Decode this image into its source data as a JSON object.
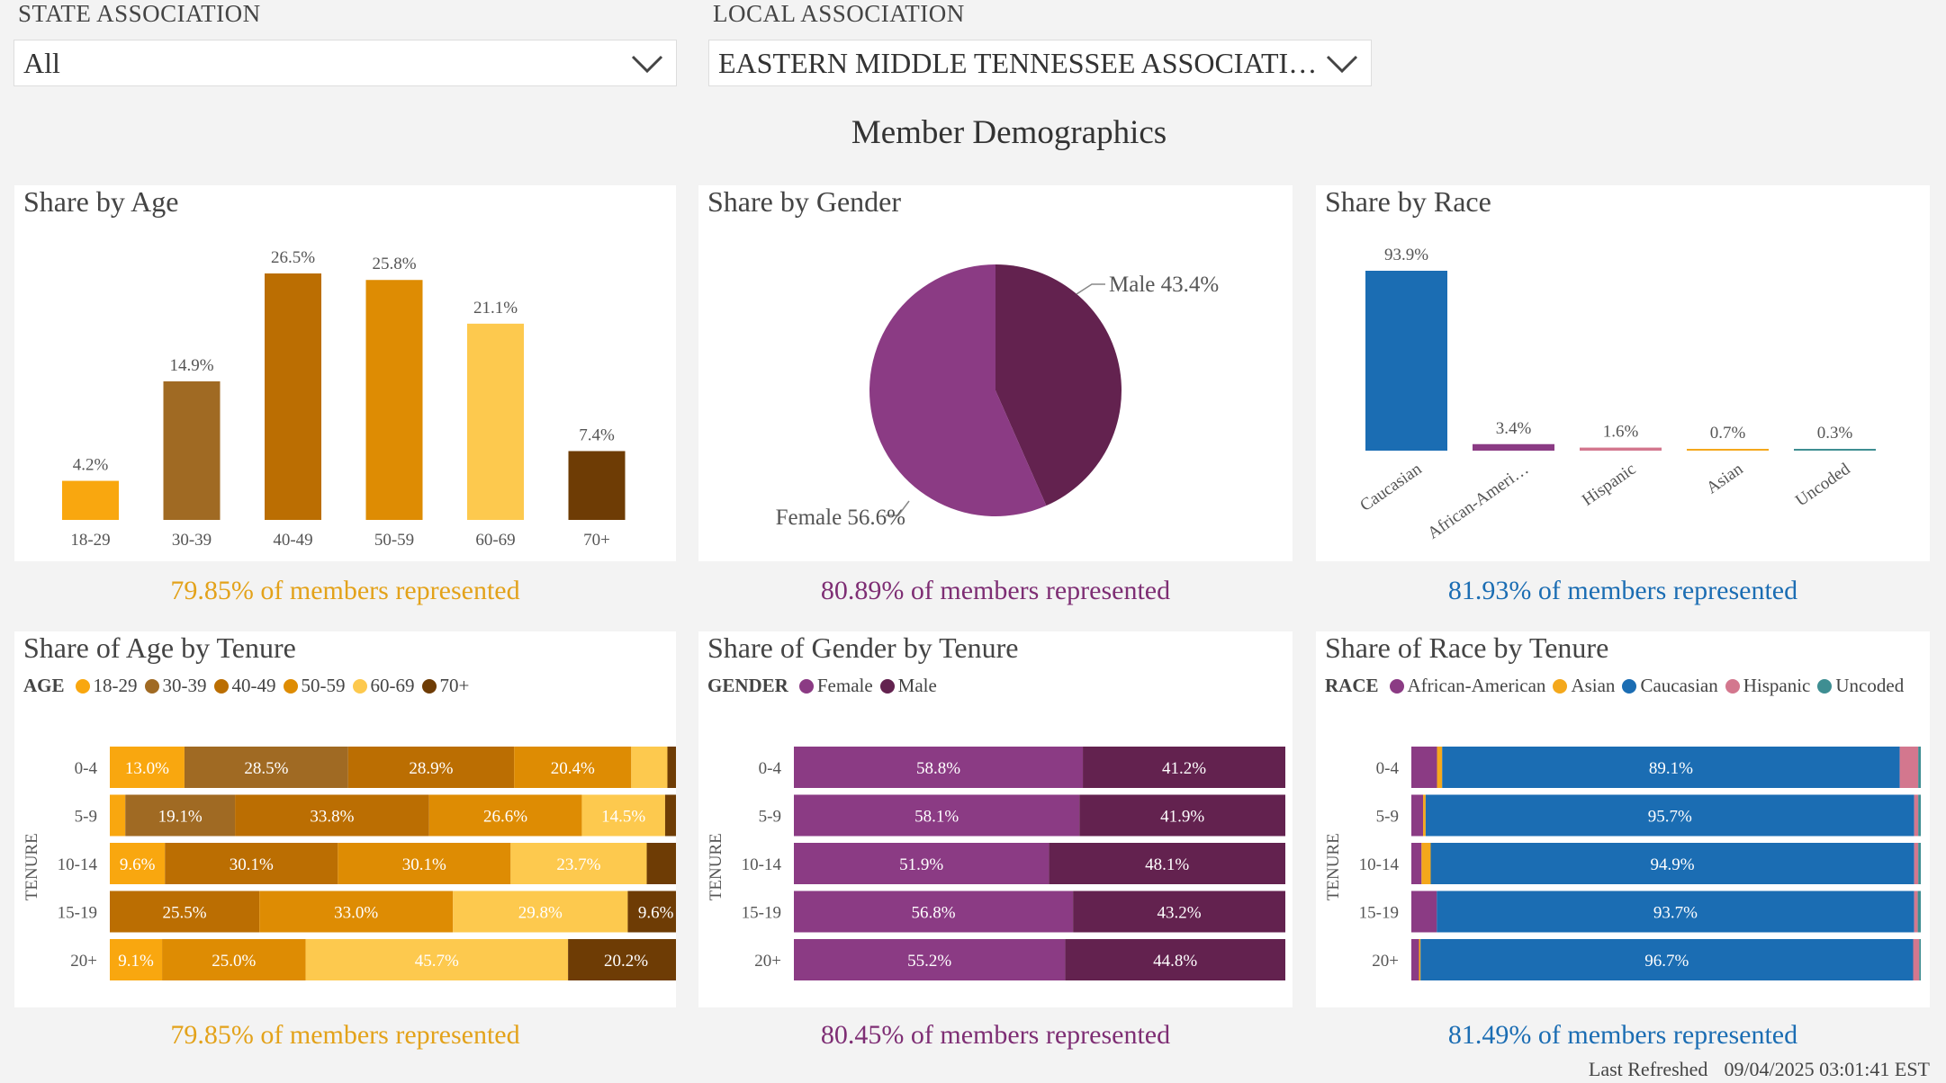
{
  "filters": {
    "state": {
      "label": "STATE ASSOCIATION",
      "value": "All"
    },
    "local": {
      "label": "LOCAL ASSOCIATION",
      "value": "EASTERN MIDDLE TENNESSEE ASSOCIATI…"
    }
  },
  "page_title": "Member Demographics",
  "colors": {
    "age": [
      "#f9a70f",
      "#a06a23",
      "#bb6e02",
      "#de8c03",
      "#fdc94e",
      "#6e3c05"
    ],
    "gender": {
      "female": "#8b3b84",
      "male": "#63224f"
    },
    "race": {
      "African-American": "#8b3b84",
      "Asian": "#f4a81c",
      "Caucasian": "#1b6db3",
      "Hispanic": "#d3778e",
      "Uncoded": "#3e8e92"
    },
    "foot_age": "#e3a21a",
    "foot_gender": "#7e2e74",
    "foot_race": "#1b6db3"
  },
  "cards": {
    "age": {
      "title": "Share by Age",
      "footnote": "79.85% of members represented"
    },
    "gender": {
      "title": "Share by Gender",
      "footnote": "80.89% of members represented"
    },
    "race": {
      "title": "Share by Race",
      "footnote": "81.93% of members represented"
    },
    "age_tenure": {
      "title": "Share of Age by Tenure",
      "footnote": "79.85% of members represented",
      "legend_title": "AGE",
      "axis_label": "TENURE"
    },
    "gender_tenure": {
      "title": "Share of Gender by Tenure",
      "footnote": "80.45% of members represented",
      "legend_title": "GENDER",
      "axis_label": "TENURE"
    },
    "race_tenure": {
      "title": "Share of Race by Tenure",
      "footnote": "81.49% of members represented",
      "legend_title": "RACE",
      "axis_label": "TENURE"
    }
  },
  "last_refreshed": {
    "label": "Last Refreshed",
    "value": "09/04/2025 03:01:41 EST"
  },
  "chart_data": [
    {
      "id": "age",
      "type": "bar",
      "title": "Share by Age",
      "categories": [
        "18-29",
        "30-39",
        "40-49",
        "50-59",
        "60-69",
        "70+"
      ],
      "values": [
        4.2,
        14.9,
        26.5,
        25.8,
        21.1,
        7.4
      ],
      "labels": [
        "4.2%",
        "14.9%",
        "26.5%",
        "25.8%",
        "21.1%",
        "7.4%"
      ],
      "ylim": [
        0,
        30
      ]
    },
    {
      "id": "gender",
      "type": "pie",
      "title": "Share by Gender",
      "categories": [
        "Male",
        "Female"
      ],
      "values": [
        43.4,
        56.6
      ],
      "labels": [
        "Male 43.4%",
        "Female 56.6%"
      ]
    },
    {
      "id": "race",
      "type": "bar",
      "title": "Share by Race",
      "categories": [
        "Caucasian",
        "African-Ameri…",
        "Hispanic",
        "Asian",
        "Uncoded"
      ],
      "values": [
        93.9,
        3.4,
        1.6,
        0.7,
        0.3
      ],
      "labels": [
        "93.9%",
        "3.4%",
        "1.6%",
        "0.7%",
        "0.3%"
      ],
      "ylim": [
        0,
        100
      ]
    },
    {
      "id": "age_tenure",
      "type": "bar",
      "orientation": "horizontal",
      "stacked": "100%",
      "title": "Share of Age by Tenure",
      "ylabel": "TENURE",
      "categories": [
        "0-4",
        "5-9",
        "10-14",
        "15-19",
        "20+"
      ],
      "series": [
        {
          "name": "18-29",
          "values": [
            13.0,
            2.7,
            9.6,
            0,
            9.1
          ],
          "labels": [
            "13.0%",
            "",
            "9.6%",
            "",
            "9.1%"
          ]
        },
        {
          "name": "30-39",
          "values": [
            28.5,
            19.1,
            0,
            0,
            0
          ],
          "labels": [
            "28.5%",
            "19.1%",
            "",
            "",
            ""
          ]
        },
        {
          "name": "40-49",
          "values": [
            28.9,
            33.8,
            30.1,
            25.5,
            0
          ],
          "labels": [
            "28.9%",
            "33.8%",
            "30.1%",
            "25.5%",
            ""
          ]
        },
        {
          "name": "50-59",
          "values": [
            20.4,
            26.6,
            30.1,
            33.0,
            25.0
          ],
          "labels": [
            "20.4%",
            "26.6%",
            "30.1%",
            "33.0%",
            "25.0%"
          ]
        },
        {
          "name": "60-69",
          "values": [
            6.3,
            14.5,
            23.7,
            29.8,
            45.7
          ],
          "labels": [
            "",
            "14.5%",
            "23.7%",
            "29.8%",
            "45.7%"
          ]
        },
        {
          "name": "70+",
          "values": [
            2.9,
            3.3,
            6.5,
            9.6,
            20.2
          ],
          "labels": [
            "",
            "",
            "",
            "9.6%",
            "20.2%"
          ]
        }
      ]
    },
    {
      "id": "gender_tenure",
      "type": "bar",
      "orientation": "horizontal",
      "stacked": "100%",
      "title": "Share of Gender by Tenure",
      "ylabel": "TENURE",
      "categories": [
        "0-4",
        "5-9",
        "10-14",
        "15-19",
        "20+"
      ],
      "series": [
        {
          "name": "Female",
          "values": [
            58.8,
            58.1,
            51.9,
            56.8,
            55.2
          ],
          "labels": [
            "58.8%",
            "58.1%",
            "51.9%",
            "56.8%",
            "55.2%"
          ]
        },
        {
          "name": "Male",
          "values": [
            41.2,
            41.9,
            48.1,
            43.2,
            44.8
          ],
          "labels": [
            "41.2%",
            "41.9%",
            "48.1%",
            "43.2%",
            "44.8%"
          ]
        }
      ]
    },
    {
      "id": "race_tenure",
      "type": "bar",
      "orientation": "horizontal",
      "stacked": "100%",
      "title": "Share of Race by Tenure",
      "ylabel": "TENURE",
      "categories": [
        "0-4",
        "5-9",
        "10-14",
        "15-19",
        "20+"
      ],
      "series": [
        {
          "name": "African-American",
          "values": [
            5.0,
            2.3,
            2.0,
            5.0,
            1.5
          ],
          "labels": [
            "",
            "",
            "",
            "",
            ""
          ]
        },
        {
          "name": "Asian",
          "values": [
            1.0,
            0.5,
            1.8,
            0,
            0.3
          ],
          "labels": [
            "",
            "",
            "",
            "",
            ""
          ]
        },
        {
          "name": "Caucasian",
          "values": [
            89.1,
            95.7,
            94.9,
            93.7,
            96.7
          ],
          "labels": [
            "89.1%",
            "95.7%",
            "94.9%",
            "93.7%",
            "96.7%"
          ]
        },
        {
          "name": "Hispanic",
          "values": [
            3.6,
            0.8,
            0.8,
            0.7,
            1.2
          ],
          "labels": [
            "",
            "",
            "",
            "",
            ""
          ]
        },
        {
          "name": "Uncoded",
          "values": [
            0.5,
            0.5,
            0.5,
            0.6,
            0.3
          ],
          "labels": [
            "",
            "",
            "",
            "",
            ""
          ]
        }
      ]
    }
  ]
}
